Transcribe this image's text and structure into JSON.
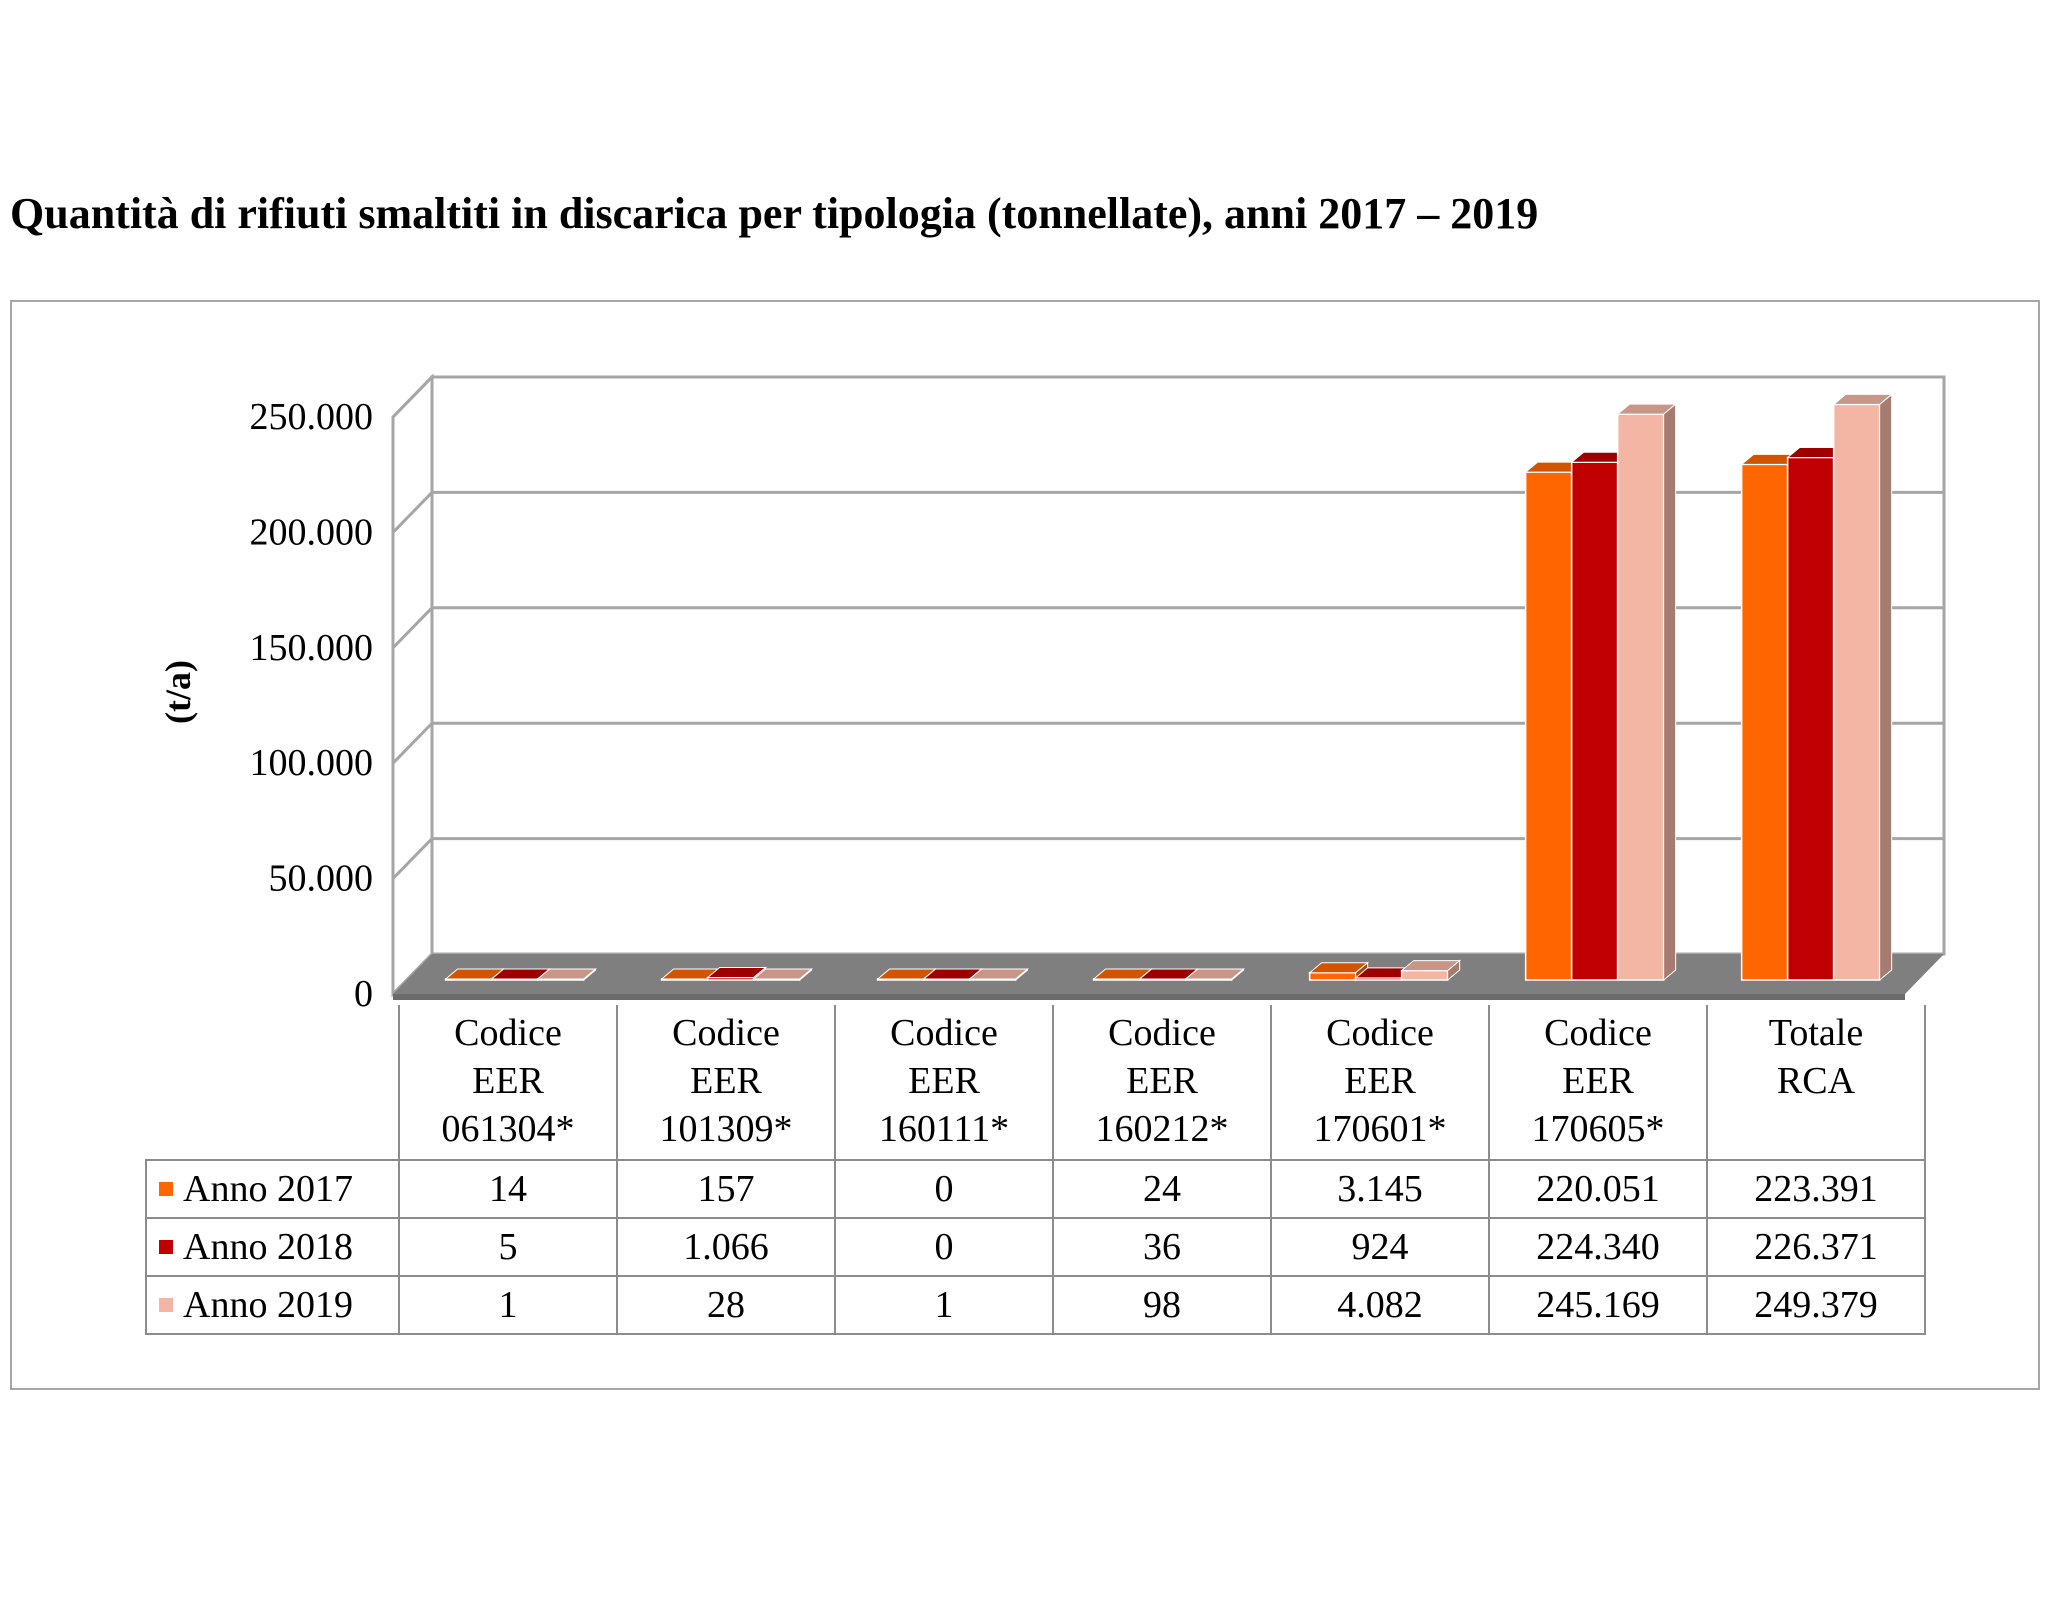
{
  "title": "Quantità di rifiuti smaltiti in discarica per tipologia (tonnellate), anni 2017 – 2019",
  "chart_data": {
    "type": "bar",
    "ylabel": "(t/a)",
    "ylim": [
      0,
      250000
    ],
    "yticks": [
      0,
      50000,
      100000,
      150000,
      200000,
      250000
    ],
    "ytick_labels": [
      "0",
      "50.000",
      "100.000",
      "150.000",
      "200.000",
      "250.000"
    ],
    "grid": true,
    "legend": "table",
    "categories": [
      [
        "Codice",
        "EER",
        "061304*"
      ],
      [
        "Codice",
        "EER",
        "101309*"
      ],
      [
        "Codice",
        "EER",
        "160111*"
      ],
      [
        "Codice",
        "EER",
        "160212*"
      ],
      [
        "Codice",
        "EER",
        "170601*"
      ],
      [
        "Codice",
        "EER",
        "170605*"
      ],
      [
        "Totale",
        "RCA"
      ]
    ],
    "series": [
      {
        "name": "Anno 2017",
        "color": "#ff6600",
        "values": [
          14,
          157,
          0,
          24,
          3145,
          220051,
          223391
        ],
        "labels": [
          "14",
          "157",
          "0",
          "24",
          "3.145",
          "220.051",
          "223.391"
        ]
      },
      {
        "name": "Anno 2018",
        "color": "#c00000",
        "values": [
          5,
          1066,
          0,
          36,
          924,
          224340,
          226371
        ],
        "labels": [
          "5",
          "1.066",
          "0",
          "36",
          "924",
          "224.340",
          "226.371"
        ]
      },
      {
        "name": "Anno 2019",
        "color": "#f4b6a4",
        "values": [
          1,
          28,
          1,
          98,
          4082,
          245169,
          249379
        ],
        "labels": [
          "1",
          "28",
          "1",
          "98",
          "4.082",
          "245.169",
          "249.379"
        ]
      }
    ]
  }
}
